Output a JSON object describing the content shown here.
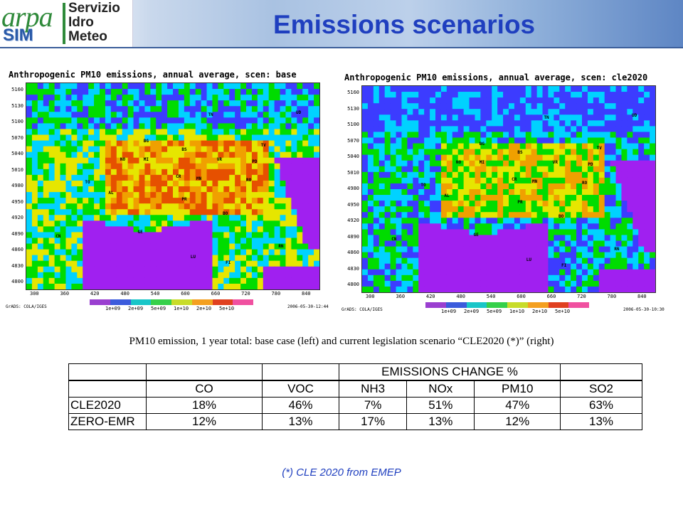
{
  "header": {
    "logo_arpa": "arpa",
    "logo_sim": "SIM",
    "logo_lines": [
      "Servizio",
      "Idro",
      "Meteo"
    ],
    "title": "Emissions scenarios"
  },
  "maps": [
    {
      "title": "Anthropogenic PM10 emissions, annual average, scen: base",
      "footer_left": "GrADS: COLA/IGES",
      "footer_right": "2006-05-30-12:44"
    },
    {
      "title": "Anthropogenic PM10 emissions, annual average, scen: cle2020",
      "footer_left": "GrADS: COLA/IGES",
      "footer_right": "2006-05-30-10:30"
    }
  ],
  "y_ticks": [
    "5160",
    "5130",
    "5100",
    "5070",
    "5040",
    "5010",
    "4980",
    "4950",
    "4920",
    "4890",
    "4860",
    "4830",
    "4800"
  ],
  "x_ticks": [
    "300",
    "360",
    "420",
    "480",
    "540",
    "600",
    "660",
    "720",
    "780",
    "840"
  ],
  "colorbar": {
    "labels": [
      "1e+09",
      "2e+09",
      "5e+09",
      "1e+10",
      "2e+10",
      "5e+10"
    ],
    "colors": [
      "#9a3fd0",
      "#3b5bdc",
      "#19c6c8",
      "#35d04a",
      "#c8dc2a",
      "#f4a020",
      "#e04020",
      "#f050a0"
    ]
  },
  "cities": [
    "TN",
    "UD",
    "BG",
    "TV",
    "BS",
    "NO",
    "MI",
    "VR",
    "PD",
    "TO",
    "CR",
    "MN",
    "RO",
    "AL",
    "PR",
    "BO",
    "CN",
    "GE",
    "LU",
    "FI",
    "RN"
  ],
  "map_colors": {
    "sea": "#a020f0",
    "low": "#3c3cff",
    "cyan": "#00d2ff",
    "green": "#00dc00",
    "yellow": "#e6e600",
    "orange": "#f0a000",
    "red": "#e65000"
  },
  "caption": "PM10 emission, 1 year total: base case (left) and current legislation scenario “CLE2020 (*)” (right)",
  "table": {
    "group_header": "EMISSIONS CHANGE %",
    "columns": [
      "CO",
      "VOC",
      "NH3",
      "NOx",
      "PM10",
      "SO2"
    ],
    "rows": [
      {
        "label": "CLE2020",
        "values": [
          "18%",
          "46%",
          "7%",
          "51%",
          "47%",
          "63%"
        ]
      },
      {
        "label": "ZERO-EMR",
        "values": [
          "12%",
          "13%",
          "17%",
          "13%",
          "12%",
          "13%"
        ]
      }
    ]
  },
  "footnote": "(*) CLE 2020 from EMEP"
}
